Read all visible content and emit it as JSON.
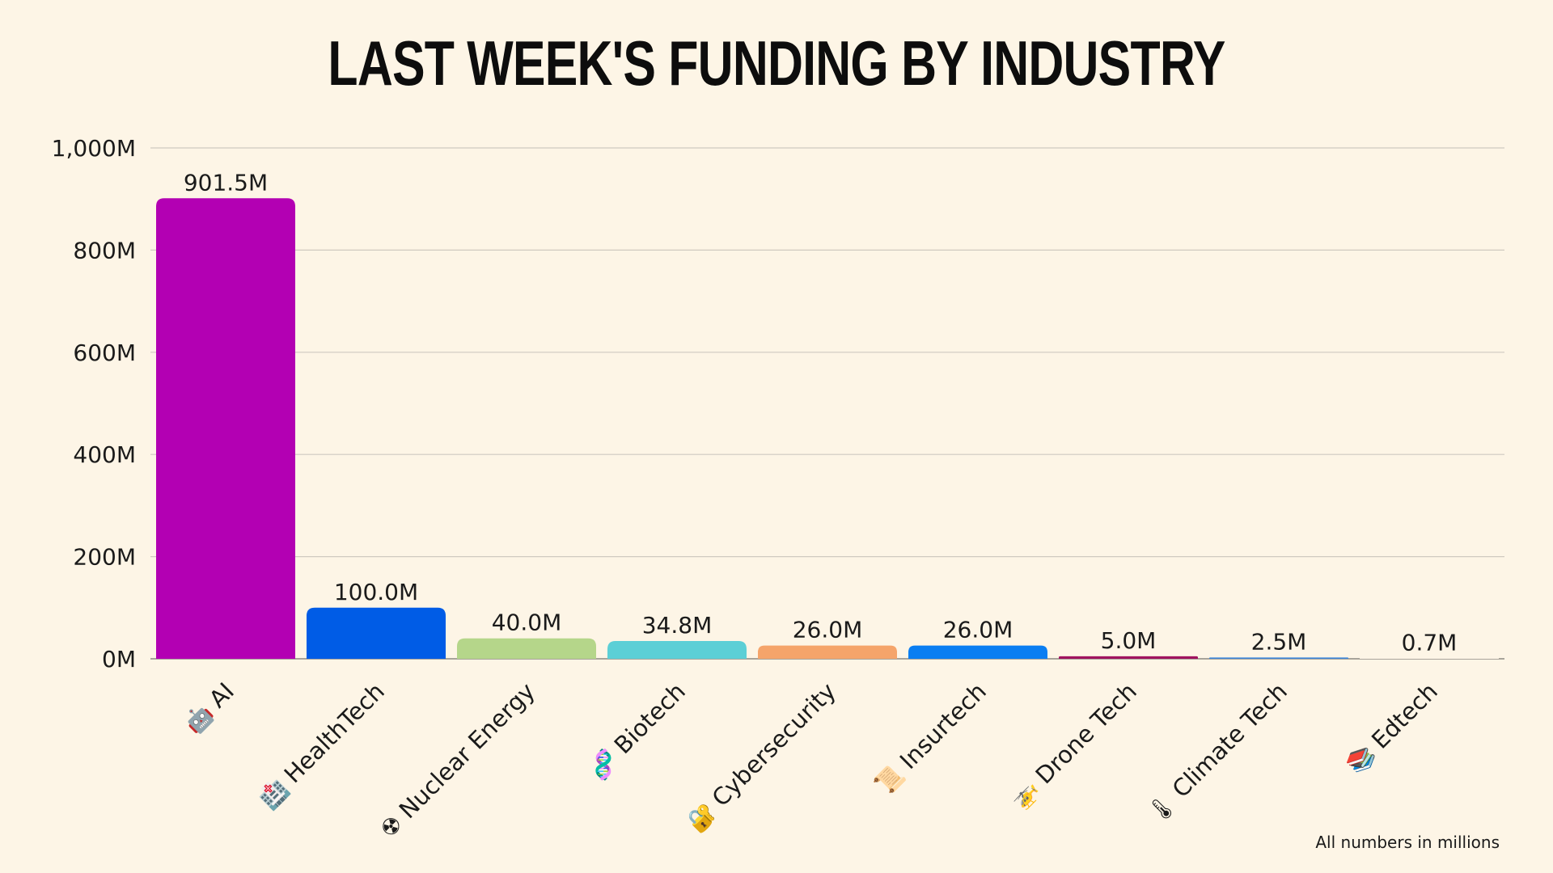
{
  "chart_data": {
    "type": "bar",
    "title": "LAST WEEK'S FUNDING BY INDUSTRY",
    "xlabel": "",
    "ylabel": "",
    "ylim": [
      0,
      1000
    ],
    "grid": true,
    "yticks": [
      "0M",
      "200M",
      "400M",
      "600M",
      "800M",
      "1,000M"
    ],
    "categories": [
      "AI",
      "HealthTech",
      "Nuclear Energy",
      "Biotech",
      "Cybersecurity",
      "Insurtech",
      "Drone Tech",
      "Climate Tech",
      "Edtech"
    ],
    "icons": [
      "🤖",
      "🏥",
      "☢",
      "🧬",
      "🔐",
      "📜",
      "🚁",
      "🌡",
      "📚"
    ],
    "values": [
      901.5,
      100.0,
      40.0,
      34.8,
      26.0,
      26.0,
      5.0,
      2.5,
      0.7
    ],
    "value_labels": [
      "901.5M",
      "100.0M",
      "40.0M",
      "34.8M",
      "26.0M",
      "26.0M",
      "5.0M",
      "2.5M",
      "0.7M"
    ],
    "colors": [
      "#b300b3",
      "#005ce6",
      "#b5d68a",
      "#5ccfd6",
      "#f5a46a",
      "#0a7ef2",
      "#a0135f",
      "#3f86d9",
      "#fdf5e6"
    ],
    "footnote": "All numbers in millions"
  },
  "theme": {
    "background": "#fdf5e6",
    "grid_color": "#cfcac0",
    "axis_color": "#a8a39a"
  }
}
